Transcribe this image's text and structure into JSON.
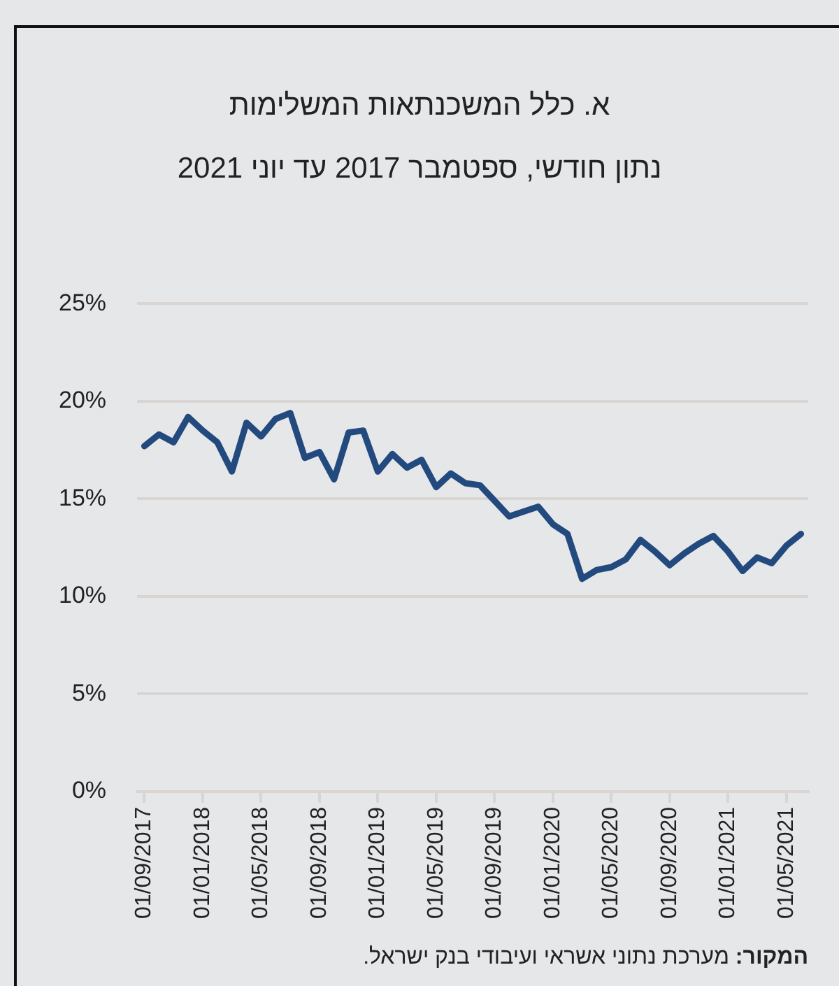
{
  "chart_data": {
    "type": "line",
    "title": "א. כלל המשכנתאות המשלימות",
    "subtitle": "נתון חודשי, ספטמבר 2017 עד יוני 2021",
    "categories": [
      "01/09/2017",
      null,
      null,
      null,
      "01/01/2018",
      null,
      null,
      null,
      "01/05/2018",
      null,
      null,
      null,
      "01/09/2018",
      null,
      null,
      null,
      "01/01/2019",
      null,
      null,
      null,
      "01/05/2019",
      null,
      null,
      null,
      "01/09/2019",
      null,
      null,
      null,
      "01/01/2020",
      null,
      null,
      null,
      "01/05/2020",
      null,
      null,
      null,
      "01/09/2020",
      null,
      null,
      null,
      "01/01/2021",
      null,
      null,
      null,
      "01/05/2021",
      null
    ],
    "series": [
      {
        "color": "#234a7e",
        "values": [
          17.7,
          18.3,
          17.9,
          19.2,
          18.5,
          17.9,
          16.4,
          18.9,
          18.2,
          19.1,
          19.4,
          17.1,
          17.4,
          16.0,
          18.4,
          18.5,
          16.4,
          17.3,
          16.6,
          17.0,
          15.6,
          16.3,
          15.8,
          15.7,
          14.9,
          14.1,
          14.35,
          14.6,
          13.7,
          13.2,
          10.9,
          11.35,
          11.5,
          11.9,
          12.9,
          12.3,
          11.6,
          12.2,
          12.7,
          13.1,
          12.3,
          11.3,
          12.0,
          11.7,
          12.6,
          13.2
        ]
      }
    ],
    "ylim": [
      0,
      25
    ],
    "yticks": [
      {
        "value": 0,
        "label": "0%"
      },
      {
        "value": 5,
        "label": "5%"
      },
      {
        "value": 10,
        "label": "10%"
      },
      {
        "value": 15,
        "label": "15%"
      },
      {
        "value": 20,
        "label": "20%"
      },
      {
        "value": 25,
        "label": "25%"
      }
    ],
    "grid": "y",
    "legend": false,
    "marker": "none",
    "line_style": "solid",
    "annotations": [
      "המקור: מערכת נתוני אשראי ועיבודי בנק ישראל."
    ]
  }
}
